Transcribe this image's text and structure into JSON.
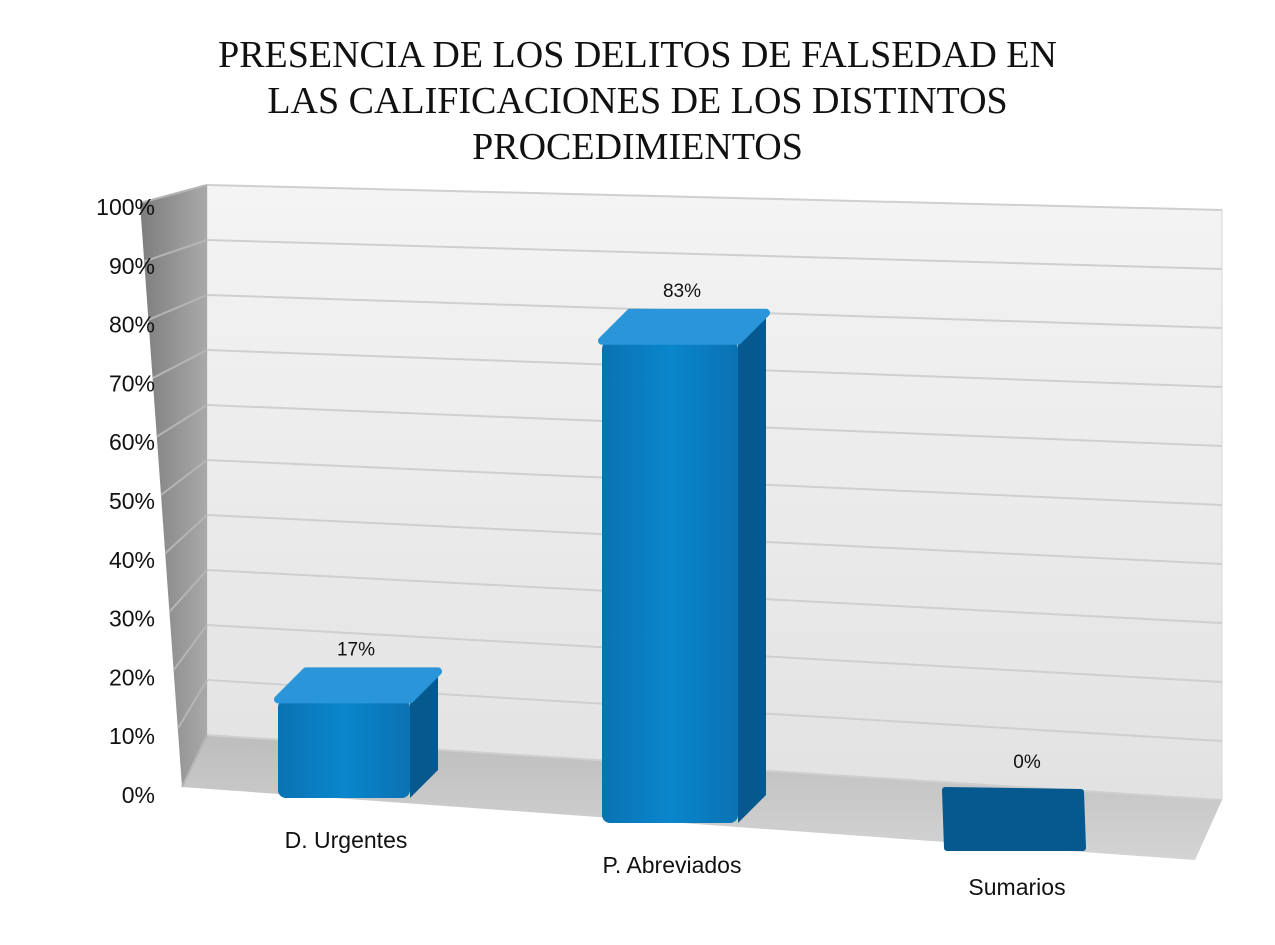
{
  "chart_data": {
    "type": "bar",
    "title_lines": [
      "PRESENCIA DE LOS DELITOS DE FALSEDAD EN",
      "LAS CALIFICACIONES DE LOS DISTINTOS",
      "PROCEDIMIENTOS"
    ],
    "categories": [
      "D. Urgentes",
      "P. Abreviados",
      "Sumarios"
    ],
    "values": [
      17,
      83,
      0
    ],
    "data_labels": [
      "17%",
      "83%",
      "0%"
    ],
    "y_ticks": [
      "0%",
      "10%",
      "20%",
      "30%",
      "40%",
      "50%",
      "60%",
      "70%",
      "80%",
      "90%",
      "100%"
    ],
    "ylim": [
      0,
      100
    ],
    "grid": true,
    "legend": "none",
    "style": "3d",
    "colors": {
      "bar": "#0a7ec2",
      "bar_top": "#2a95d8",
      "bar_side": "#05598f",
      "wall": "#e9e9e9",
      "side_wall": "#8c8c8c",
      "floor": "#c8c8c8"
    }
  }
}
